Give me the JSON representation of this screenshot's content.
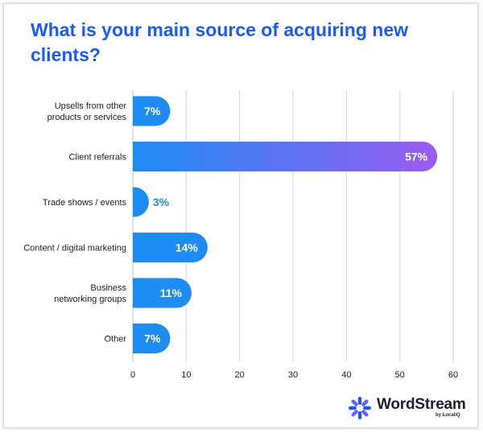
{
  "chart_data": {
    "type": "bar",
    "orientation": "horizontal",
    "title": "What is your main source of acquiring new clients?",
    "categories": [
      [
        "Upsells from other",
        "products or services"
      ],
      [
        "Client referrals"
      ],
      [
        "Trade shows / events"
      ],
      [
        "Content / digital marketing"
      ],
      [
        "Business",
        "networking groups"
      ],
      [
        "Other"
      ]
    ],
    "values": [
      7,
      57,
      3,
      14,
      11,
      7
    ],
    "value_labels": [
      "7%",
      "57%",
      "3%",
      "14%",
      "11%",
      "7%"
    ],
    "xlim": [
      0,
      60
    ],
    "xticks": [
      0,
      10,
      20,
      30,
      40,
      50,
      60
    ],
    "grid": true,
    "colors": {
      "bar_start": "#1e8cf5",
      "bar_end": "#9b5cf0",
      "label_inside": "#ffffff",
      "label_outside": "#1e8cf5",
      "grid": "#d9d9d9"
    }
  },
  "branding": {
    "name": "WordStream",
    "sub": "by LocaliQ",
    "icon": "wordstream-starburst-icon"
  }
}
